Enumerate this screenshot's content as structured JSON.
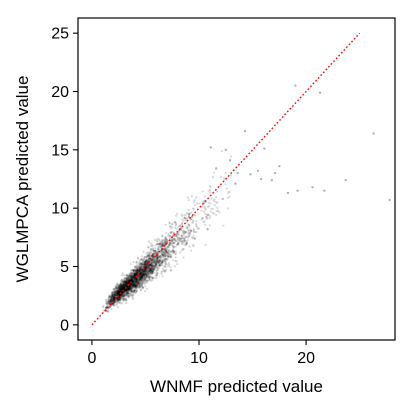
{
  "chart_data": {
    "type": "scatter",
    "title": "",
    "xlabel": "WNMF predicted value",
    "ylabel": "WGLMPCA predicted value",
    "xlim": [
      -1.3,
      28.3
    ],
    "ylim": [
      -1.3,
      26.3
    ],
    "xticks": [
      0,
      10,
      20
    ],
    "yticks": [
      0,
      5,
      10,
      15,
      20,
      25
    ],
    "xtick_labels": [
      "0",
      "10",
      "20"
    ],
    "ytick_labels": [
      "0",
      "5",
      "10",
      "15",
      "20",
      "25"
    ],
    "grid": false,
    "legend": "none",
    "point_color": "#000000",
    "point_opacity": 0.15,
    "reference_line": {
      "style": "dotted",
      "color": "#ff0000",
      "from": [
        0,
        0
      ],
      "to": [
        25,
        25
      ]
    },
    "point_cloud": {
      "description_density": "dense band",
      "approx_count": 3000,
      "trend_y_at_x": [
        [
          0.5,
          0.6
        ],
        [
          2,
          2.3
        ],
        [
          4,
          3.9
        ],
        [
          6,
          5.6
        ],
        [
          8,
          7.3
        ],
        [
          10,
          9.3
        ],
        [
          12,
          11.3
        ]
      ],
      "spread_sd": 0.7
    },
    "outliers": [
      {
        "x": 26.3,
        "y": 16.4
      },
      {
        "x": 27.8,
        "y": 10.7
      },
      {
        "x": 14.3,
        "y": 16.6
      },
      {
        "x": 16.1,
        "y": 15.1
      },
      {
        "x": 15.5,
        "y": 13.2
      },
      {
        "x": 13.6,
        "y": 13.0
      },
      {
        "x": 12.9,
        "y": 14.1
      },
      {
        "x": 20.6,
        "y": 11.8
      },
      {
        "x": 23.7,
        "y": 12.4
      },
      {
        "x": 19.2,
        "y": 11.5
      },
      {
        "x": 17.5,
        "y": 13.6
      },
      {
        "x": 18.3,
        "y": 11.3
      },
      {
        "x": 21.7,
        "y": 11.5
      },
      {
        "x": 16.8,
        "y": 12.4
      },
      {
        "x": 12.5,
        "y": 15.0
      },
      {
        "x": 11.1,
        "y": 15.2
      },
      {
        "x": 21.3,
        "y": 19.9
      },
      {
        "x": 19.0,
        "y": 20.5
      },
      {
        "x": 14.8,
        "y": 12.9
      },
      {
        "x": 13.4,
        "y": 12.1
      },
      {
        "x": 11.6,
        "y": 13.4
      },
      {
        "x": 15.8,
        "y": 12.5
      },
      {
        "x": 17.1,
        "y": 13.0
      },
      {
        "x": 9.6,
        "y": 7.4
      },
      {
        "x": 10.8,
        "y": 8.2
      }
    ]
  }
}
